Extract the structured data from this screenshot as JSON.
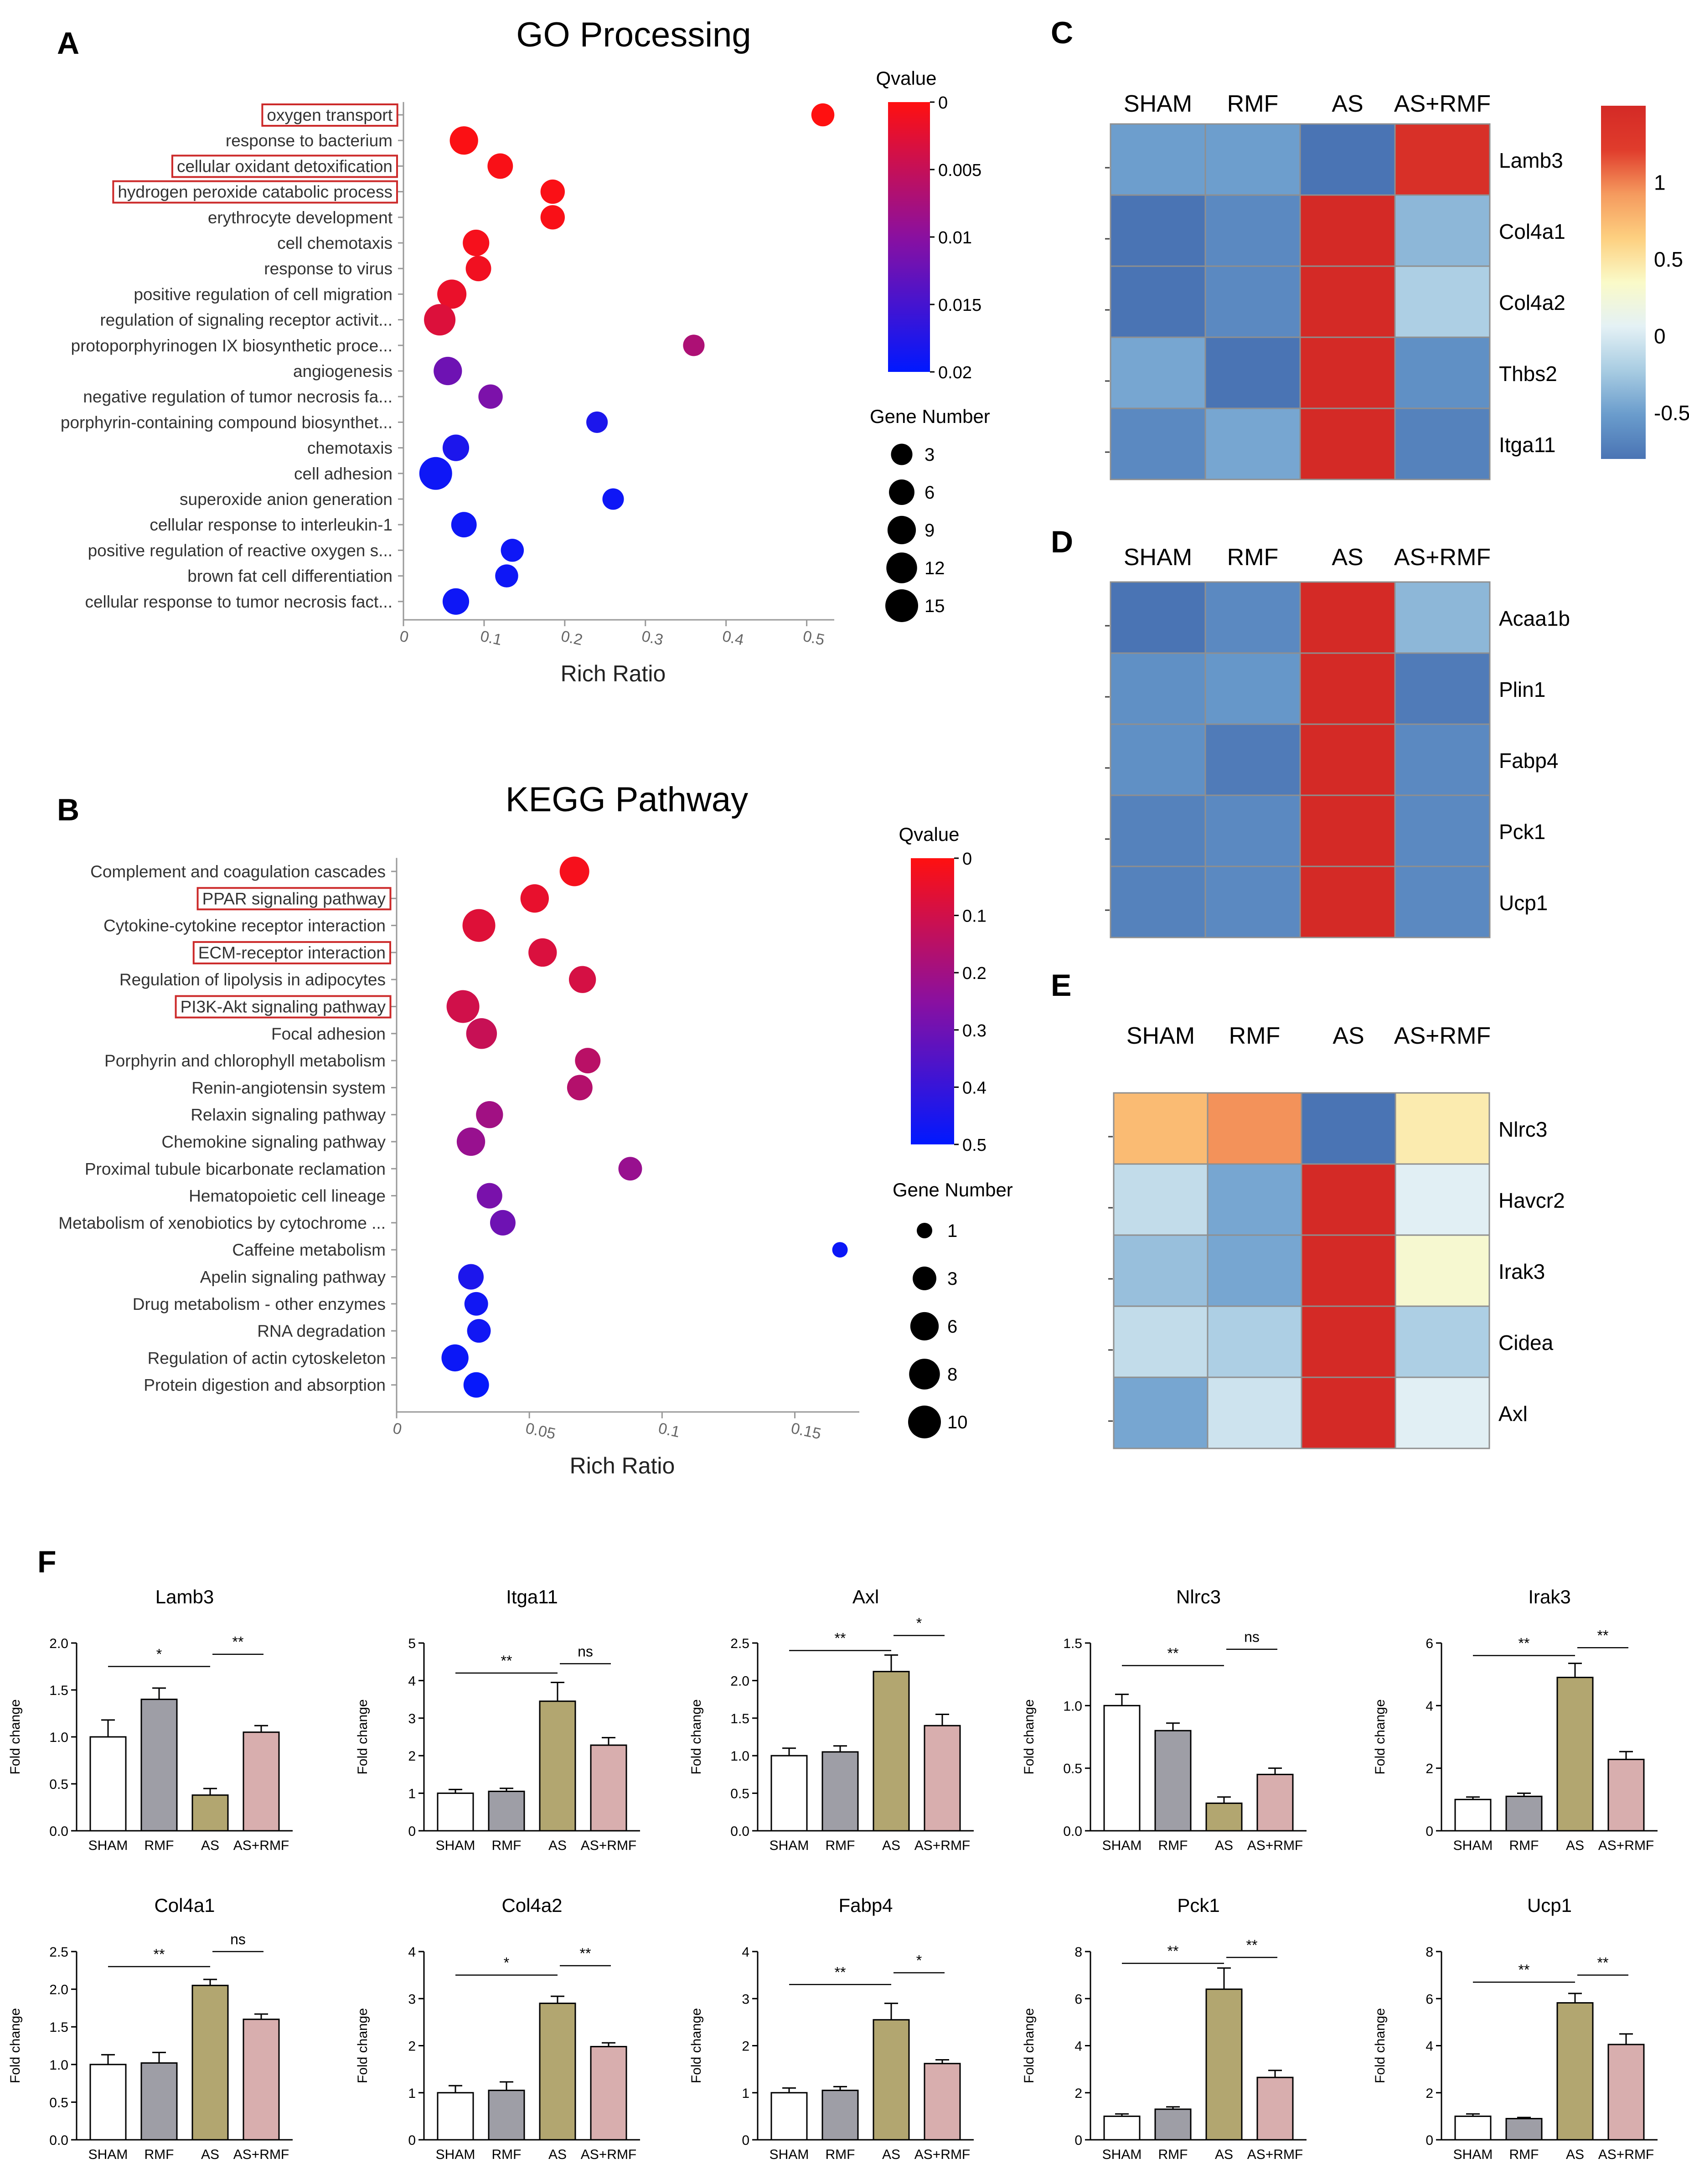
{
  "colors": {
    "bar_sham": "#ffffff",
    "bar_rmf": "#9e9ea6",
    "bar_as": "#b2a670",
    "bar_asrmf": "#d8aeae",
    "box_red": "#cc2a2a",
    "hm_stops": [
      "#4a74b4",
      "#6a9ccc",
      "#a8cce2",
      "#e4f1f5",
      "#fafac8",
      "#fdd080",
      "#f59a5e",
      "#e03c2c",
      "#d42a26"
    ],
    "q_stops": [
      "#0018ff",
      "#8a10a0",
      "#ff1010"
    ]
  },
  "chart_data": [
    {
      "id": "A",
      "type": "scatter",
      "panel_letter": "A",
      "title": "GO  Processing",
      "xlabel": "Rich Ratio",
      "xlim": [
        0,
        0.52
      ],
      "xticks": [
        0,
        0.1,
        0.2,
        0.3,
        0.4,
        0.5
      ],
      "xtick_labels": [
        "0",
        "0.1",
        "0.2",
        "0.3",
        "0.4",
        "0.5"
      ],
      "qvalue_label": "Qvalue",
      "qvalue_range": [
        0,
        0.02
      ],
      "qvalue_ticks": [
        "0",
        "0.005",
        "0.01",
        "0.015",
        "0.02"
      ],
      "size_label": "Gene Number",
      "size_range": [
        1,
        15
      ],
      "size_legend": [
        "3",
        "6",
        "9",
        "12",
        "15"
      ],
      "terms": [
        {
          "label": "oxygen transport",
          "x": 0.52,
          "genes": 4,
          "q": 0.0,
          "boxed": true
        },
        {
          "label": "response to bacterium",
          "x": 0.075,
          "genes": 9,
          "q": 0.0003,
          "boxed": false
        },
        {
          "label": "cellular oxidant detoxification",
          "x": 0.12,
          "genes": 6,
          "q": 0.0005,
          "boxed": true
        },
        {
          "label": "hydrogen peroxide catabolic process",
          "x": 0.185,
          "genes": 5,
          "q": 0.0004,
          "boxed": true
        },
        {
          "label": "erythrocyte development",
          "x": 0.185,
          "genes": 5,
          "q": 0.0005,
          "boxed": false
        },
        {
          "label": "cell chemotaxis",
          "x": 0.09,
          "genes": 7,
          "q": 0.0008,
          "boxed": false
        },
        {
          "label": "response to virus",
          "x": 0.093,
          "genes": 6,
          "q": 0.0012,
          "boxed": false
        },
        {
          "label": "positive regulation of cell migration",
          "x": 0.06,
          "genes": 10,
          "q": 0.0018,
          "boxed": false
        },
        {
          "label": "regulation of signaling receptor activit...",
          "x": 0.045,
          "genes": 13,
          "q": 0.003,
          "boxed": false
        },
        {
          "label": "protoporphyrinogen IX biosynthetic proce...",
          "x": 0.36,
          "genes": 3,
          "q": 0.007,
          "boxed": false
        },
        {
          "label": "angiogenesis",
          "x": 0.055,
          "genes": 9,
          "q": 0.012,
          "boxed": false
        },
        {
          "label": "negative regulation of tumor necrosis fa...",
          "x": 0.108,
          "genes": 5,
          "q": 0.011,
          "boxed": false
        },
        {
          "label": "porphyrin-containing compound biosynthet...",
          "x": 0.24,
          "genes": 3,
          "q": 0.018,
          "boxed": false
        },
        {
          "label": "chemotaxis",
          "x": 0.065,
          "genes": 7,
          "q": 0.018,
          "boxed": false
        },
        {
          "label": "cell adhesion",
          "x": 0.04,
          "genes": 15,
          "q": 0.019,
          "boxed": false
        },
        {
          "label": "superoxide anion generation",
          "x": 0.26,
          "genes": 3,
          "q": 0.019,
          "boxed": false
        },
        {
          "label": "cellular response to interleukin-1",
          "x": 0.075,
          "genes": 6,
          "q": 0.019,
          "boxed": false
        },
        {
          "label": "positive regulation of reactive oxygen s...",
          "x": 0.135,
          "genes": 4,
          "q": 0.019,
          "boxed": false
        },
        {
          "label": "brown fat cell differentiation",
          "x": 0.128,
          "genes": 4,
          "q": 0.019,
          "boxed": false
        },
        {
          "label": "cellular response to tumor necrosis fact...",
          "x": 0.065,
          "genes": 7,
          "q": 0.019,
          "boxed": false
        }
      ]
    },
    {
      "id": "B",
      "type": "scatter",
      "panel_letter": "B",
      "title": "KEGG Pathway",
      "xlabel": "Rich Ratio",
      "xlim": [
        0,
        0.17
      ],
      "xticks": [
        0,
        0.05,
        0.1,
        0.15
      ],
      "xtick_labels": [
        "0",
        "0.05",
        "0.1",
        "0.15"
      ],
      "qvalue_label": "Qvalue",
      "qvalue_range": [
        0,
        0.5
      ],
      "qvalue_ticks": [
        "0",
        "0.1",
        "0.2",
        "0.3",
        "0.4",
        "0.5"
      ],
      "size_label": "Gene Number",
      "size_range": [
        1,
        10
      ],
      "size_legend": [
        "1",
        "3",
        "6",
        "8",
        "10"
      ],
      "terms": [
        {
          "label": "Complement and coagulation cascades",
          "x": 0.067,
          "genes": 7,
          "q": 0.02,
          "boxed": false
        },
        {
          "label": "PPAR signaling pathway",
          "x": 0.052,
          "genes": 6,
          "q": 0.05,
          "boxed": true
        },
        {
          "label": "Cytokine-cytokine receptor interaction",
          "x": 0.031,
          "genes": 10,
          "q": 0.07,
          "boxed": false
        },
        {
          "label": "ECM-receptor interaction",
          "x": 0.055,
          "genes": 6,
          "q": 0.08,
          "boxed": true
        },
        {
          "label": "Regulation of lipolysis in adipocytes",
          "x": 0.07,
          "genes": 5,
          "q": 0.09,
          "boxed": false
        },
        {
          "label": "PI3K-Akt signaling pathway",
          "x": 0.025,
          "genes": 10,
          "q": 0.1,
          "boxed": true
        },
        {
          "label": "Focal adhesion",
          "x": 0.032,
          "genes": 8,
          "q": 0.12,
          "boxed": false
        },
        {
          "label": "Porphyrin and chlorophyll metabolism",
          "x": 0.072,
          "genes": 4,
          "q": 0.15,
          "boxed": false
        },
        {
          "label": "Renin-angiotensin system",
          "x": 0.069,
          "genes": 4,
          "q": 0.16,
          "boxed": false
        },
        {
          "label": "Relaxin signaling pathway",
          "x": 0.035,
          "genes": 5,
          "q": 0.2,
          "boxed": false
        },
        {
          "label": "Chemokine signaling pathway",
          "x": 0.028,
          "genes": 6,
          "q": 0.22,
          "boxed": false
        },
        {
          "label": "Proximal tubule bicarbonate reclamation",
          "x": 0.088,
          "genes": 3,
          "q": 0.22,
          "boxed": false
        },
        {
          "label": "Hematopoietic cell lineage",
          "x": 0.035,
          "genes": 4,
          "q": 0.28,
          "boxed": false
        },
        {
          "label": "Metabolism of xenobiotics by cytochrome ...",
          "x": 0.04,
          "genes": 4,
          "q": 0.3,
          "boxed": false
        },
        {
          "label": "Caffeine metabolism",
          "x": 0.167,
          "genes": 1,
          "q": 0.48,
          "boxed": false
        },
        {
          "label": "Apelin signaling pathway",
          "x": 0.028,
          "genes": 4,
          "q": 0.45,
          "boxed": false
        },
        {
          "label": "Drug metabolism - other enzymes",
          "x": 0.03,
          "genes": 3,
          "q": 0.47,
          "boxed": false
        },
        {
          "label": "RNA degradation",
          "x": 0.031,
          "genes": 3,
          "q": 0.47,
          "boxed": false
        },
        {
          "label": "Regulation of actin cytoskeleton",
          "x": 0.022,
          "genes": 5,
          "q": 0.48,
          "boxed": false
        },
        {
          "label": "Protein digestion and absorption",
          "x": 0.03,
          "genes": 4,
          "q": 0.49,
          "boxed": false
        }
      ]
    },
    {
      "id": "C",
      "type": "heatmap",
      "panel_letter": "C",
      "columns": [
        "SHAM",
        "RMF",
        "AS",
        "AS+RMF"
      ],
      "rows": [
        "Lamb3",
        "Col4a1",
        "Col4a2",
        "Thbs2",
        "Itga11"
      ],
      "values": [
        [
          -0.5,
          -0.5,
          -0.9,
          1.4
        ],
        [
          -0.85,
          -0.65,
          1.5,
          -0.35
        ],
        [
          -0.85,
          -0.65,
          1.5,
          -0.2
        ],
        [
          -0.45,
          -0.8,
          1.5,
          -0.6
        ],
        [
          -0.65,
          -0.45,
          1.5,
          -0.7
        ]
      ],
      "color_range": [
        -0.8,
        1.5
      ],
      "colorbar_ticks": [
        1,
        0.5,
        0,
        -0.5
      ],
      "colorbar_tick_labels": [
        "1",
        "0.5",
        "0",
        "-0.5"
      ]
    },
    {
      "id": "D",
      "type": "heatmap",
      "panel_letter": "D",
      "columns": [
        "SHAM",
        "RMF",
        "AS",
        "AS+RMF"
      ],
      "rows": [
        "Acaa1b",
        "Plin1",
        "Fabp4",
        "Pck1",
        "Ucp1"
      ],
      "values": [
        [
          -0.85,
          -0.65,
          1.5,
          -0.35
        ],
        [
          -0.6,
          -0.55,
          1.5,
          -0.75
        ],
        [
          -0.6,
          -0.75,
          1.5,
          -0.65
        ],
        [
          -0.7,
          -0.65,
          1.5,
          -0.65
        ],
        [
          -0.7,
          -0.65,
          1.5,
          -0.65
        ]
      ],
      "color_range": [
        -0.8,
        1.5
      ]
    },
    {
      "id": "E",
      "type": "heatmap",
      "panel_letter": "E",
      "columns": [
        "SHAM",
        "RMF",
        "AS",
        "AS+RMF"
      ],
      "rows": [
        "Nlrc3",
        "Havcr2",
        "Irak3",
        "Cidea",
        "Axl"
      ],
      "values": [
        [
          0.75,
          0.95,
          -0.85,
          0.45
        ],
        [
          -0.1,
          -0.45,
          1.5,
          0.05
        ],
        [
          -0.3,
          -0.45,
          1.5,
          0.3
        ],
        [
          -0.1,
          -0.2,
          1.5,
          -0.2
        ],
        [
          -0.45,
          -0.05,
          1.5,
          0.05
        ]
      ],
      "color_range": [
        -0.8,
        1.5
      ]
    },
    {
      "id": "F",
      "type": "bar",
      "panel_letter": "F",
      "ylabel": "Fold change",
      "categories": [
        "SHAM",
        "RMF",
        "AS",
        "AS+RMF"
      ],
      "charts": [
        {
          "title": "Lamb3",
          "ymax": 2.0,
          "ticks": [
            0,
            0.5,
            1.0,
            1.5,
            2.0
          ],
          "tick_labels": [
            "0.0",
            "0.5",
            "1.0",
            "1.5",
            "2.0"
          ],
          "values": [
            1.0,
            1.4,
            0.38,
            1.05
          ],
          "errors": [
            0.18,
            0.12,
            0.07,
            0.07
          ],
          "sig1": "*",
          "sig2": "**",
          "sig1_level": 1.75,
          "sig2_level": 1.88
        },
        {
          "title": "Itga11",
          "ymax": 5,
          "ticks": [
            0,
            1,
            2,
            3,
            4,
            5
          ],
          "tick_labels": [
            "0",
            "1",
            "2",
            "3",
            "4",
            "5"
          ],
          "values": [
            1.0,
            1.05,
            3.45,
            2.28
          ],
          "errors": [
            0.1,
            0.08,
            0.5,
            0.2
          ],
          "sig1": "**",
          "sig2": "ns",
          "sig1_level": 4.2,
          "sig2_level": 4.45
        },
        {
          "title": "Axl",
          "ymax": 2.5,
          "ticks": [
            0,
            0.5,
            1.0,
            1.5,
            2.0,
            2.5
          ],
          "tick_labels": [
            "0.0",
            "0.5",
            "1.0",
            "1.5",
            "2.0",
            "2.5"
          ],
          "values": [
            1.0,
            1.05,
            2.12,
            1.4
          ],
          "errors": [
            0.1,
            0.08,
            0.22,
            0.15
          ],
          "sig1": "**",
          "sig2": "*",
          "sig1_level": 2.4,
          "sig2_level": 2.6
        },
        {
          "title": "Nlrc3",
          "ymax": 1.5,
          "ticks": [
            0,
            0.5,
            1.0,
            1.5
          ],
          "tick_labels": [
            "0.0",
            "0.5",
            "1.0",
            "1.5"
          ],
          "values": [
            1.0,
            0.8,
            0.22,
            0.45
          ],
          "errors": [
            0.09,
            0.06,
            0.05,
            0.05
          ],
          "sig1": "**",
          "sig2": "ns",
          "sig1_level": 1.32,
          "sig2_level": 1.45
        },
        {
          "title": "Irak3",
          "ymax": 6,
          "ticks": [
            0,
            2,
            4,
            6
          ],
          "tick_labels": [
            "0",
            "2",
            "4",
            "6"
          ],
          "values": [
            1.0,
            1.1,
            4.9,
            2.28
          ],
          "errors": [
            0.08,
            0.1,
            0.45,
            0.25
          ],
          "sig1": "**",
          "sig2": "**",
          "sig1_level": 5.6,
          "sig2_level": 5.85
        },
        {
          "title": "Col4a1",
          "ymax": 2.5,
          "ticks": [
            0,
            0.5,
            1.0,
            1.5,
            2.0,
            2.5
          ],
          "tick_labels": [
            "0.0",
            "0.5",
            "1.0",
            "1.5",
            "2.0",
            "2.5"
          ],
          "values": [
            1.0,
            1.02,
            2.05,
            1.6
          ],
          "errors": [
            0.13,
            0.14,
            0.08,
            0.07
          ],
          "sig1": "**",
          "sig2": "ns",
          "sig1_level": 2.3,
          "sig2_level": 2.5
        },
        {
          "title": "Col4a2",
          "ymax": 4,
          "ticks": [
            0,
            1,
            2,
            3,
            4
          ],
          "tick_labels": [
            "0",
            "1",
            "2",
            "3",
            "4"
          ],
          "values": [
            1.0,
            1.05,
            2.9,
            1.98
          ],
          "errors": [
            0.15,
            0.18,
            0.15,
            0.08
          ],
          "sig1": "*",
          "sig2": "**",
          "sig1_level": 3.5,
          "sig2_level": 3.7
        },
        {
          "title": "Fabp4",
          "ymax": 4,
          "ticks": [
            0,
            1,
            2,
            3,
            4
          ],
          "tick_labels": [
            "0",
            "1",
            "2",
            "3",
            "4"
          ],
          "values": [
            1.0,
            1.05,
            2.55,
            1.62
          ],
          "errors": [
            0.1,
            0.08,
            0.35,
            0.08
          ],
          "sig1": "**",
          "sig2": "*",
          "sig1_level": 3.3,
          "sig2_level": 3.55
        },
        {
          "title": "Pck1",
          "ymax": 8,
          "ticks": [
            0,
            2,
            4,
            6,
            8
          ],
          "tick_labels": [
            "0",
            "2",
            "4",
            "6",
            "8"
          ],
          "values": [
            1.0,
            1.3,
            6.4,
            2.65
          ],
          "errors": [
            0.1,
            0.1,
            0.9,
            0.3
          ],
          "sig1": "**",
          "sig2": "**",
          "sig1_level": 7.5,
          "sig2_level": 7.75
        },
        {
          "title": "Ucp1",
          "ymax": 8,
          "ticks": [
            0,
            2,
            4,
            6,
            8
          ],
          "tick_labels": [
            "0",
            "2",
            "4",
            "6",
            "8"
          ],
          "values": [
            1.0,
            0.9,
            5.82,
            4.05
          ],
          "errors": [
            0.1,
            0.05,
            0.4,
            0.45
          ],
          "sig1": "**",
          "sig2": "**",
          "sig1_level": 6.7,
          "sig2_level": 7.0
        }
      ]
    }
  ]
}
